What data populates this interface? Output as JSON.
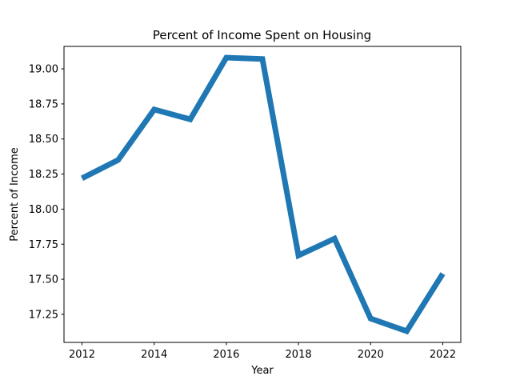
{
  "chart_data": {
    "type": "line",
    "title": "Percent of Income Spent on Housing",
    "xlabel": "Year",
    "ylabel": "Percent of Income",
    "x": [
      2012,
      2013,
      2014,
      2015,
      2016,
      2017,
      2018,
      2019,
      2020,
      2021,
      2022
    ],
    "series": [
      {
        "values": [
          18.22,
          18.35,
          18.71,
          18.64,
          19.08,
          19.07,
          17.67,
          17.79,
          17.22,
          17.13,
          17.54
        ],
        "color": "#1f77b4"
      }
    ],
    "xlim": [
      2011.5,
      2022.5
    ],
    "ylim": [
      17.05,
      19.16
    ],
    "xticks": [
      "2012",
      "2014",
      "2016",
      "2018",
      "2020",
      "2022"
    ],
    "yticks": [
      "17.25",
      "17.50",
      "17.75",
      "18.00",
      "18.25",
      "18.50",
      "18.75",
      "19.00"
    ],
    "grid": false,
    "legend": "none"
  }
}
